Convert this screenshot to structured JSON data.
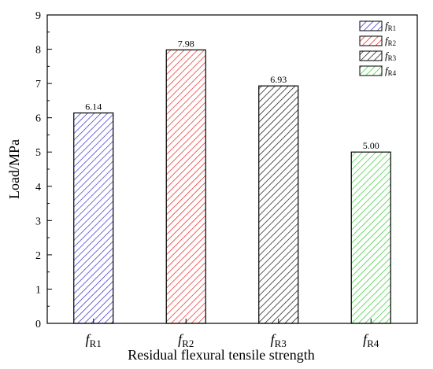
{
  "chart_data": {
    "type": "bar",
    "categories": [
      {
        "main": "f",
        "sub": "R1"
      },
      {
        "main": "f",
        "sub": "R2"
      },
      {
        "main": "f",
        "sub": "R3"
      },
      {
        "main": "f",
        "sub": "R4"
      }
    ],
    "values": [
      6.14,
      7.98,
      6.93,
      5.0
    ],
    "data_labels": [
      "6.14",
      "7.98",
      "6.93",
      "5.00"
    ],
    "colors": [
      "#2e2ed6",
      "#e62020",
      "#111111",
      "#2ecc2e"
    ],
    "pattern": "diagonal-hatch",
    "xlabel": "Residual flexural tensile strength",
    "ylabel": "Load/MPa",
    "ylim": [
      0,
      9
    ],
    "yticks": [
      "0",
      "1",
      "2",
      "3",
      "4",
      "5",
      "6",
      "7",
      "8",
      "9"
    ],
    "grid": false,
    "legend": {
      "position": "top-right",
      "entries": [
        {
          "main": "f",
          "sub": "R1"
        },
        {
          "main": "f",
          "sub": "R2"
        },
        {
          "main": "f",
          "sub": "R3"
        },
        {
          "main": "f",
          "sub": "R4"
        }
      ]
    }
  }
}
